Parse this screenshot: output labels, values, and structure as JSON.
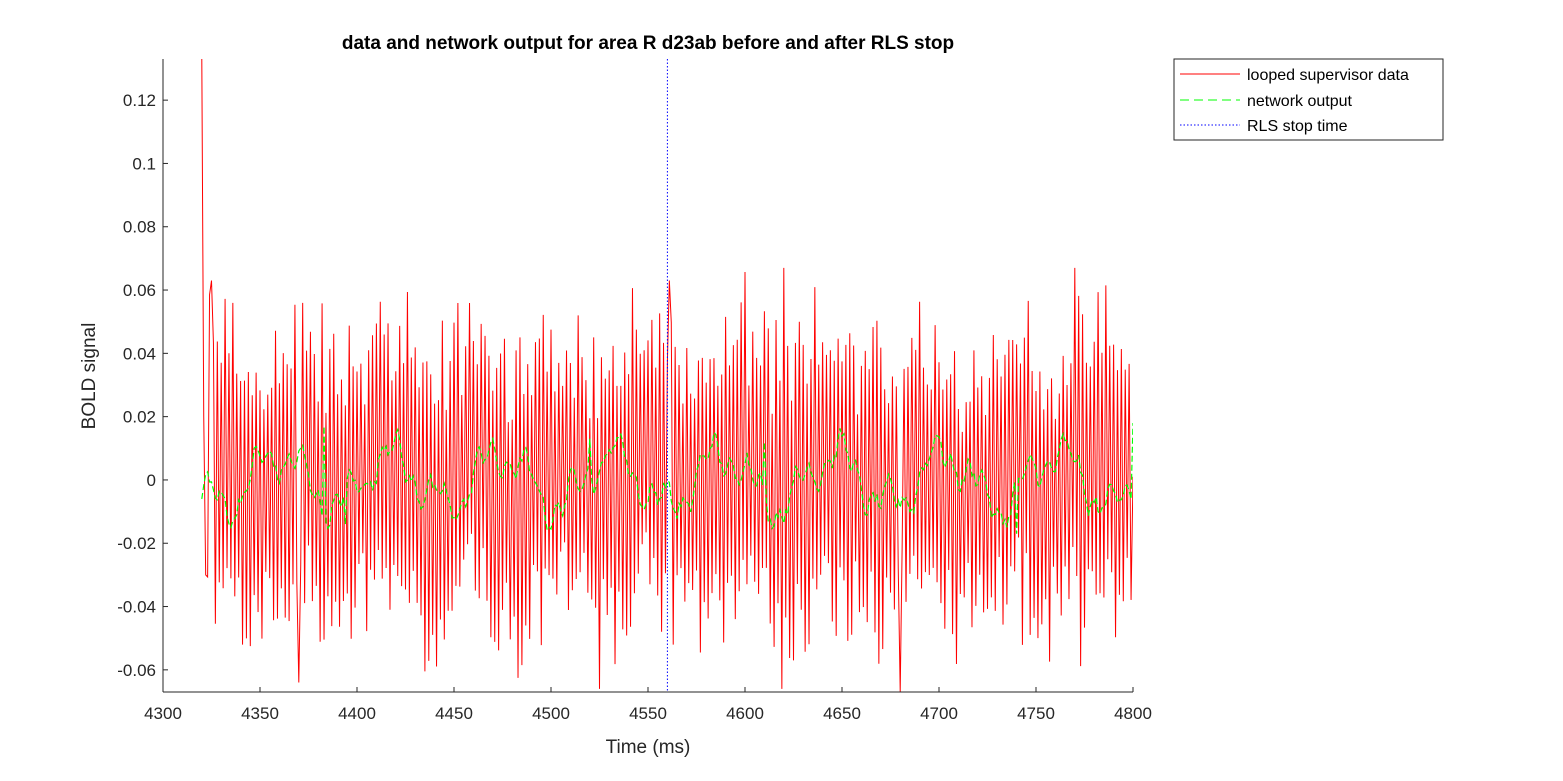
{
  "chart_data": {
    "type": "line",
    "title": "data and network output for area R d23ab before and after RLS stop",
    "xlabel": "Time (ms)",
    "ylabel": "BOLD signal",
    "xlim": [
      4300,
      4800
    ],
    "ylim": [
      -0.067,
      0.133
    ],
    "xticks": [
      4300,
      4350,
      4400,
      4450,
      4500,
      4550,
      4600,
      4650,
      4700,
      4750,
      4800
    ],
    "xtick_labels": [
      "4300",
      "4350",
      "4400",
      "4450",
      "4500",
      "4550",
      "4600",
      "4650",
      "4700",
      "4750",
      "4800"
    ],
    "yticks": [
      -0.06,
      -0.04,
      -0.02,
      0,
      0.02,
      0.04,
      0.06,
      0.08,
      0.1,
      0.12
    ],
    "ytick_labels": [
      "-0.06",
      "-0.04",
      "-0.02",
      "0",
      "0.02",
      "0.04",
      "0.06",
      "0.08",
      "0.1",
      "0.12"
    ],
    "grid": false,
    "legend_position": "top-right, outside the axes",
    "series": [
      {
        "name": "looped supervisor data",
        "color": "#ff0000",
        "style": "solid",
        "x_range": [
          4320,
          4800
        ],
        "note_values": "dense oscillating signal, peak 0.133 at x=4320, otherwise roughly between -0.065 and 0.067",
        "key_points": [
          [
            4320,
            0.133
          ],
          [
            4322,
            -0.03
          ],
          [
            4325,
            0.063
          ],
          [
            4370,
            -0.064
          ],
          [
            4525,
            -0.066
          ],
          [
            4561,
            0.063
          ],
          [
            4620,
            0.067
          ],
          [
            4680,
            -0.067
          ],
          [
            4770,
            0.067
          ],
          [
            4800,
            0.001
          ]
        ]
      },
      {
        "name": "network output",
        "color": "#00ff00",
        "style": "dashed",
        "x_range": [
          4320,
          4800
        ],
        "note_values": "low amplitude oscillation roughly between -0.018 and 0.018",
        "key_points": [
          [
            4320,
            -0.006
          ],
          [
            4383,
            0.017
          ],
          [
            4394,
            -0.014
          ],
          [
            4520,
            0.013
          ],
          [
            4610,
            0.012
          ],
          [
            4740,
            -0.017
          ],
          [
            4800,
            0.018
          ]
        ]
      },
      {
        "name": "RLS stop time",
        "color": "#0000ff",
        "style": "dotted",
        "x": 4560
      }
    ],
    "legend": [
      "looped supervisor data",
      "network output",
      "RLS stop time"
    ]
  }
}
